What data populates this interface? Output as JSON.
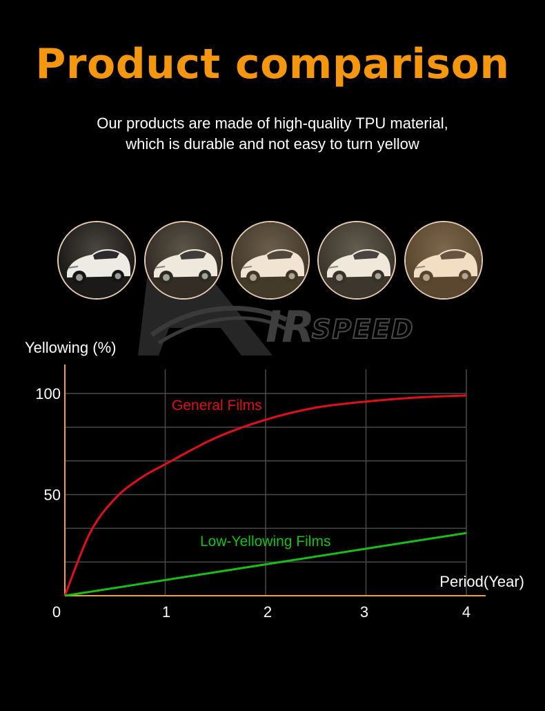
{
  "header": {
    "title": "Product comparison",
    "subtitle_line1": "Our products are made of high-quality TPU material,",
    "subtitle_line2": "which is durable and not easy to turn yellow"
  },
  "watermark": {
    "brand_letters": "IR",
    "brand_word": "SPEED"
  },
  "photos": [
    {
      "tint": "rgba(0,0,0,0)"
    },
    {
      "tint": "rgba(255,220,160,0.10)"
    },
    {
      "tint": "rgba(255,205,130,0.18)"
    },
    {
      "tint": "rgba(255,225,170,0.14)"
    },
    {
      "tint": "rgba(255,190,110,0.28)"
    }
  ],
  "colors": {
    "accent": "#f5960f",
    "axis": "#f0a03c",
    "general": "#e0101a",
    "low": "#16c016",
    "grid": "#4a4a4a"
  },
  "chart_data": {
    "type": "line",
    "ylabel": "Yellowing (%)",
    "xlabel": "Period(Year)",
    "xlim": [
      0,
      4
    ],
    "ylim": [
      0,
      100
    ],
    "x_ticks": [
      "0",
      "1",
      "2",
      "3",
      "4"
    ],
    "y_ticks": [
      "100",
      "50"
    ],
    "grid": true,
    "series": [
      {
        "name": "General Films",
        "color": "#e0101a",
        "x": [
          0,
          0.25,
          0.5,
          0.75,
          1,
          1.5,
          2,
          2.5,
          3,
          3.5,
          4
        ],
        "y": [
          0,
          31,
          48,
          58,
          65,
          78,
          87,
          93,
          96,
          98,
          99
        ]
      },
      {
        "name": "Low-Yellowing Films",
        "color": "#16c016",
        "x": [
          0,
          4
        ],
        "y": [
          0,
          31
        ]
      }
    ]
  }
}
